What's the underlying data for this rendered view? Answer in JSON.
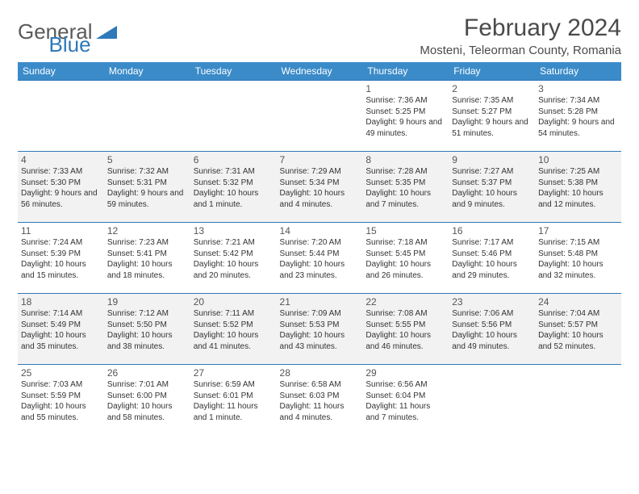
{
  "brand": {
    "part1": "General",
    "part2": "Blue",
    "logo_color": "#2f78b9"
  },
  "title": "February 2024",
  "location": "Mosteni, Teleorman County, Romania",
  "colors": {
    "header_bg": "#3b8bc9",
    "header_text": "#ffffff",
    "border": "#2f78b9",
    "alt_row": "#f2f2f2",
    "text": "#333333"
  },
  "weekdays": [
    "Sunday",
    "Monday",
    "Tuesday",
    "Wednesday",
    "Thursday",
    "Friday",
    "Saturday"
  ],
  "weeks": [
    [
      null,
      null,
      null,
      null,
      {
        "d": "1",
        "sr": "7:36 AM",
        "ss": "5:25 PM",
        "dl": "9 hours and 49 minutes."
      },
      {
        "d": "2",
        "sr": "7:35 AM",
        "ss": "5:27 PM",
        "dl": "9 hours and 51 minutes."
      },
      {
        "d": "3",
        "sr": "7:34 AM",
        "ss": "5:28 PM",
        "dl": "9 hours and 54 minutes."
      }
    ],
    [
      {
        "d": "4",
        "sr": "7:33 AM",
        "ss": "5:30 PM",
        "dl": "9 hours and 56 minutes."
      },
      {
        "d": "5",
        "sr": "7:32 AM",
        "ss": "5:31 PM",
        "dl": "9 hours and 59 minutes."
      },
      {
        "d": "6",
        "sr": "7:31 AM",
        "ss": "5:32 PM",
        "dl": "10 hours and 1 minute."
      },
      {
        "d": "7",
        "sr": "7:29 AM",
        "ss": "5:34 PM",
        "dl": "10 hours and 4 minutes."
      },
      {
        "d": "8",
        "sr": "7:28 AM",
        "ss": "5:35 PM",
        "dl": "10 hours and 7 minutes."
      },
      {
        "d": "9",
        "sr": "7:27 AM",
        "ss": "5:37 PM",
        "dl": "10 hours and 9 minutes."
      },
      {
        "d": "10",
        "sr": "7:25 AM",
        "ss": "5:38 PM",
        "dl": "10 hours and 12 minutes."
      }
    ],
    [
      {
        "d": "11",
        "sr": "7:24 AM",
        "ss": "5:39 PM",
        "dl": "10 hours and 15 minutes."
      },
      {
        "d": "12",
        "sr": "7:23 AM",
        "ss": "5:41 PM",
        "dl": "10 hours and 18 minutes."
      },
      {
        "d": "13",
        "sr": "7:21 AM",
        "ss": "5:42 PM",
        "dl": "10 hours and 20 minutes."
      },
      {
        "d": "14",
        "sr": "7:20 AM",
        "ss": "5:44 PM",
        "dl": "10 hours and 23 minutes."
      },
      {
        "d": "15",
        "sr": "7:18 AM",
        "ss": "5:45 PM",
        "dl": "10 hours and 26 minutes."
      },
      {
        "d": "16",
        "sr": "7:17 AM",
        "ss": "5:46 PM",
        "dl": "10 hours and 29 minutes."
      },
      {
        "d": "17",
        "sr": "7:15 AM",
        "ss": "5:48 PM",
        "dl": "10 hours and 32 minutes."
      }
    ],
    [
      {
        "d": "18",
        "sr": "7:14 AM",
        "ss": "5:49 PM",
        "dl": "10 hours and 35 minutes."
      },
      {
        "d": "19",
        "sr": "7:12 AM",
        "ss": "5:50 PM",
        "dl": "10 hours and 38 minutes."
      },
      {
        "d": "20",
        "sr": "7:11 AM",
        "ss": "5:52 PM",
        "dl": "10 hours and 41 minutes."
      },
      {
        "d": "21",
        "sr": "7:09 AM",
        "ss": "5:53 PM",
        "dl": "10 hours and 43 minutes."
      },
      {
        "d": "22",
        "sr": "7:08 AM",
        "ss": "5:55 PM",
        "dl": "10 hours and 46 minutes."
      },
      {
        "d": "23",
        "sr": "7:06 AM",
        "ss": "5:56 PM",
        "dl": "10 hours and 49 minutes."
      },
      {
        "d": "24",
        "sr": "7:04 AM",
        "ss": "5:57 PM",
        "dl": "10 hours and 52 minutes."
      }
    ],
    [
      {
        "d": "25",
        "sr": "7:03 AM",
        "ss": "5:59 PM",
        "dl": "10 hours and 55 minutes."
      },
      {
        "d": "26",
        "sr": "7:01 AM",
        "ss": "6:00 PM",
        "dl": "10 hours and 58 minutes."
      },
      {
        "d": "27",
        "sr": "6:59 AM",
        "ss": "6:01 PM",
        "dl": "11 hours and 1 minute."
      },
      {
        "d": "28",
        "sr": "6:58 AM",
        "ss": "6:03 PM",
        "dl": "11 hours and 4 minutes."
      },
      {
        "d": "29",
        "sr": "6:56 AM",
        "ss": "6:04 PM",
        "dl": "11 hours and 7 minutes."
      },
      null,
      null
    ]
  ],
  "labels": {
    "sunrise": "Sunrise: ",
    "sunset": "Sunset: ",
    "daylight": "Daylight: "
  }
}
